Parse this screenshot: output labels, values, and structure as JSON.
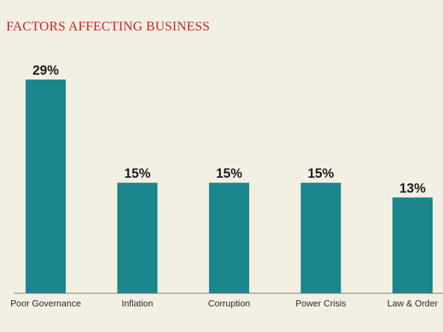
{
  "chart_data": {
    "type": "bar",
    "title": "FACTORS AFFECTING BUSINESS",
    "categories": [
      "Poor Governance",
      "Inflation",
      "Corruption",
      "Power Crisis",
      "Law & Order"
    ],
    "values": [
      29,
      15,
      15,
      15,
      13
    ],
    "value_labels": [
      "29%",
      "15%",
      "15%",
      "15%",
      "13%"
    ],
    "xlabel": "",
    "ylabel": "",
    "ylim": [
      0,
      29
    ],
    "grid": false,
    "legend": "none",
    "colors": {
      "bar": "#1b868c",
      "title": "#cc2229",
      "background": "#f2efe3"
    }
  }
}
